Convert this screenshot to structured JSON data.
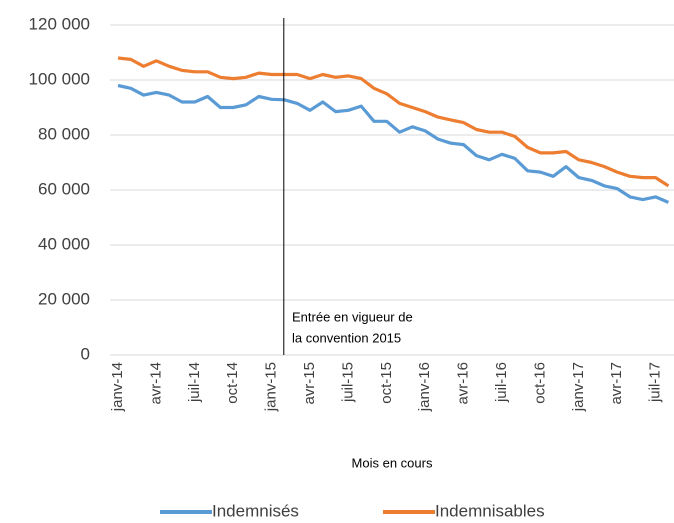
{
  "chart_data": {
    "type": "line",
    "x_label": "Mois en cours",
    "annotation": [
      "Entrée en vigueur de",
      "la convention 2015"
    ],
    "categories": [
      "janv-14",
      null,
      null,
      "avr-14",
      null,
      null,
      "juil-14",
      null,
      null,
      "oct-14",
      null,
      null,
      "janv-15",
      null,
      null,
      "avr-15",
      null,
      null,
      "juil-15",
      null,
      null,
      "oct-15",
      null,
      null,
      "janv-16",
      null,
      null,
      "avr-16",
      null,
      null,
      "juil-16",
      null,
      null,
      "oct-16",
      null,
      null,
      "janv-17",
      null,
      null,
      "avr-17",
      null,
      null,
      "juil-17",
      null
    ],
    "series": [
      {
        "name": "Indemnisés",
        "color": "#5b9bd5",
        "values": [
          98000,
          97000,
          94500,
          95500,
          94500,
          92000,
          92000,
          94000,
          90000,
          90000,
          91000,
          94000,
          93000,
          92800,
          91500,
          89000,
          92000,
          88500,
          89000,
          90500,
          85000,
          85000,
          81000,
          83000,
          81500,
          78500,
          77000,
          76500,
          72500,
          71000,
          73000,
          71500,
          67000,
          66500,
          65000,
          68500,
          64500,
          63500,
          61500,
          60500,
          57500,
          56500,
          57500,
          55500
        ]
      },
      {
        "name": "Indemnisables",
        "color": "#ed7d31",
        "values": [
          108000,
          107500,
          105000,
          107000,
          105000,
          103500,
          103000,
          103000,
          101000,
          100500,
          101000,
          102500,
          102000,
          102000,
          102000,
          100500,
          102000,
          101000,
          101500,
          100500,
          97000,
          95000,
          91500,
          90000,
          88500,
          86500,
          85500,
          84500,
          82000,
          81000,
          81000,
          79500,
          75500,
          73500,
          73500,
          74000,
          71000,
          70000,
          68500,
          66500,
          65000,
          64500,
          64500,
          61500
        ]
      }
    ],
    "ylim": [
      0,
      120000
    ],
    "yticks": [
      0,
      {
        "value": 20000,
        "label": "20 000"
      },
      {
        "value": 40000,
        "label": "40 000"
      },
      {
        "value": 60000,
        "label": "60 000"
      },
      {
        "value": 80000,
        "label": "80 000"
      },
      {
        "value": 100000,
        "label": "100 000"
      },
      {
        "value": 120000,
        "label": "120 000"
      }
    ],
    "grid": true,
    "legend": "bottom"
  }
}
